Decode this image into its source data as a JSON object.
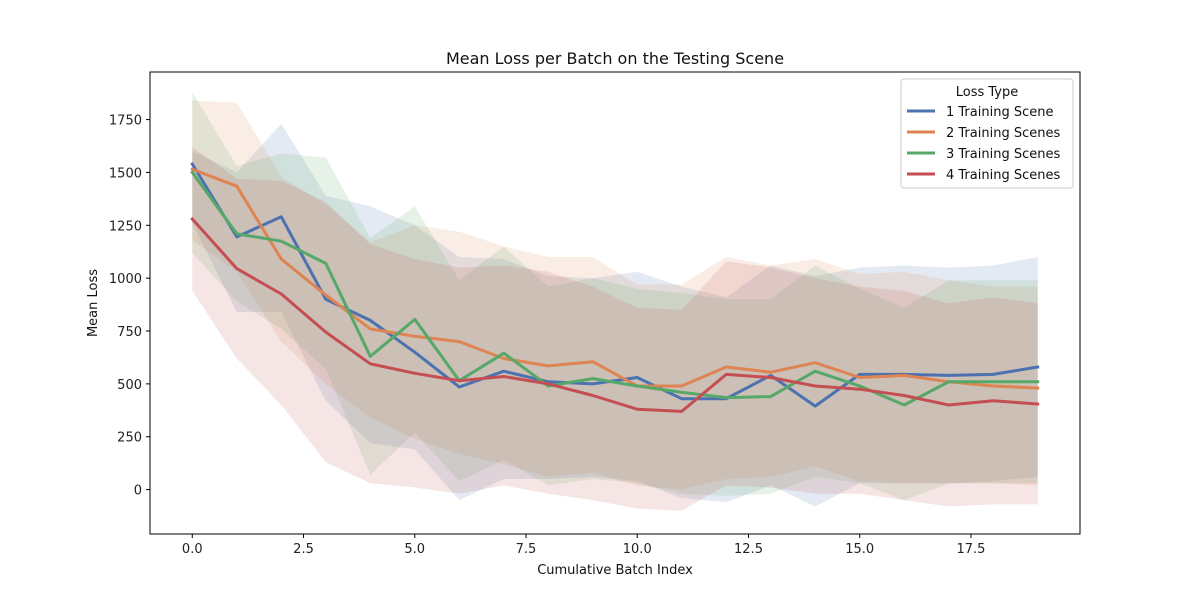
{
  "chart_data": {
    "type": "line",
    "title": "Mean Loss per Batch on the Testing Scene",
    "xlabel": "Cumulative Batch Index",
    "ylabel": "Mean Loss",
    "xlim": [
      -0.95,
      19.95
    ],
    "ylim": [
      -210,
      1975
    ],
    "xticks": [
      0.0,
      2.5,
      5.0,
      7.5,
      10.0,
      12.5,
      15.0,
      17.5
    ],
    "xtick_labels": [
      "0.0",
      "2.5",
      "5.0",
      "7.5",
      "10.0",
      "12.5",
      "15.0",
      "17.5"
    ],
    "yticks": [
      0,
      250,
      500,
      750,
      1000,
      1250,
      1500,
      1750
    ],
    "ytick_labels": [
      "0",
      "250",
      "500",
      "750",
      "1000",
      "1250",
      "1500",
      "1750"
    ],
    "grid": false,
    "legend": {
      "title": "Loss Type",
      "position": "top-right"
    },
    "x": [
      0,
      1,
      2,
      3,
      4,
      5,
      6,
      7,
      8,
      9,
      10,
      11,
      12,
      13,
      14,
      15,
      16,
      17,
      18,
      19
    ],
    "series": [
      {
        "name": "1 Training Scene",
        "color": "#4c72b0",
        "values": [
          1540,
          1195,
          1290,
          900,
          800,
          650,
          485,
          560,
          510,
          500,
          530,
          430,
          430,
          540,
          395,
          545,
          545,
          540,
          545,
          580
        ],
        "upper": [
          1600,
          1500,
          1730,
          1390,
          1340,
          1250,
          1100,
          1090,
          1010,
          1000,
          1030,
          960,
          910,
          1060,
          1010,
          1050,
          1060,
          1050,
          1060,
          1100
        ],
        "lower": [
          1260,
          840,
          840,
          420,
          220,
          190,
          -50,
          50,
          50,
          60,
          40,
          -40,
          -60,
          20,
          -80,
          30,
          30,
          30,
          40,
          60
        ]
      },
      {
        "name": "2 Training Scenes",
        "color": "#dd8452",
        "values": [
          1515,
          1435,
          1090,
          920,
          760,
          725,
          700,
          620,
          585,
          605,
          490,
          490,
          580,
          555,
          600,
          530,
          540,
          510,
          490,
          480
        ],
        "upper": [
          1840,
          1830,
          1480,
          1350,
          1170,
          1250,
          1220,
          1150,
          1100,
          1100,
          970,
          970,
          1100,
          1060,
          1090,
          1020,
          1030,
          990,
          960,
          960
        ],
        "lower": [
          1180,
          1030,
          700,
          500,
          340,
          240,
          170,
          120,
          60,
          80,
          20,
          0,
          50,
          60,
          110,
          40,
          30,
          30,
          30,
          20
        ]
      },
      {
        "name": "3 Training Scenes",
        "color": "#55a868",
        "values": [
          1500,
          1210,
          1175,
          1070,
          630,
          805,
          515,
          645,
          490,
          525,
          490,
          460,
          435,
          440,
          560,
          490,
          400,
          510,
          510,
          510
        ],
        "upper": [
          1880,
          1530,
          1590,
          1570,
          1190,
          1340,
          990,
          1150,
          960,
          1000,
          950,
          930,
          900,
          900,
          1060,
          950,
          860,
          990,
          990,
          990
        ],
        "lower": [
          1120,
          890,
          760,
          570,
          70,
          270,
          40,
          140,
          20,
          50,
          30,
          -20,
          -30,
          -20,
          60,
          30,
          -50,
          30,
          30,
          30
        ]
      },
      {
        "name": "4 Training Scenes",
        "color": "#c44e52",
        "values": [
          1280,
          1045,
          925,
          745,
          595,
          550,
          515,
          535,
          500,
          445,
          380,
          370,
          545,
          530,
          490,
          475,
          445,
          400,
          420,
          405
        ],
        "upper": [
          1620,
          1470,
          1460,
          1360,
          1160,
          1090,
          1050,
          1060,
          1030,
          960,
          860,
          850,
          1080,
          1050,
          1000,
          960,
          940,
          880,
          910,
          880
        ],
        "lower": [
          940,
          620,
          400,
          130,
          30,
          10,
          -20,
          20,
          -20,
          -50,
          -90,
          -100,
          20,
          10,
          -20,
          -20,
          -50,
          -80,
          -70,
          -70
        ]
      }
    ]
  }
}
